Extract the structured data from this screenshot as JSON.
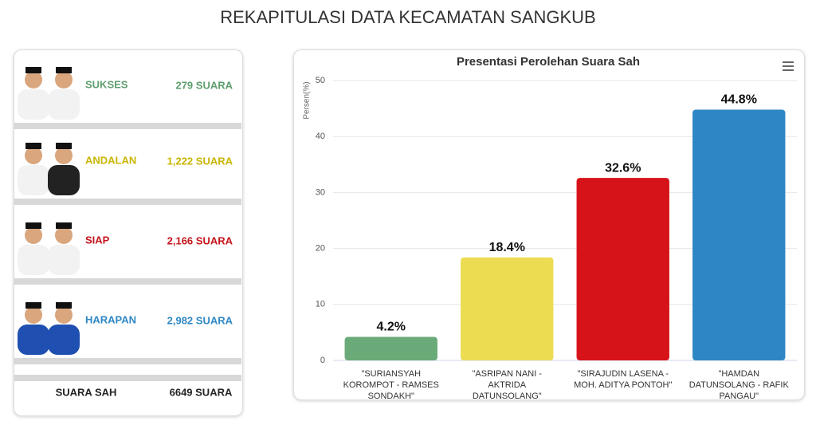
{
  "header": {
    "title": "REKAPITULASI DATA KECAMATAN SANGKUB"
  },
  "candidates": [
    {
      "name": "SUKSES",
      "votes": "279 SUARA",
      "color": "#5e9e6e"
    },
    {
      "name": "ANDALAN",
      "votes": "1,222 SUARA",
      "color": "#c9b500"
    },
    {
      "name": "SIAP",
      "votes": "2,166 SUARA",
      "color": "#c4141b"
    },
    {
      "name": "HARAPAN",
      "votes": "2,982 SUARA",
      "color": "#2e87c4"
    }
  ],
  "total": {
    "label": "SUARA SAH",
    "value": "6649 SUARA"
  },
  "chart_data": {
    "type": "bar",
    "title": "Presentasi Perolehan Suara Sah",
    "y_label": "Persen(%)",
    "categories": [
      "\"SURIANSYAH KOROMPOT - RAMSES SONDAKH\"",
      "\"ASRIPAN NANI - AKTRIDA DATUNSOLANG\"",
      "\"SIRAJUDIN LASENA - MOH. ADITYA PONTOH\"",
      "\"HAMDAN DATUNSOLANG - RAFIK PANGAU\""
    ],
    "values": [
      4.2,
      18.4,
      32.6,
      44.8
    ],
    "value_labels": [
      "4.2%",
      "18.4%",
      "32.6%",
      "44.8%"
    ],
    "colors": [
      "#6aaa78",
      "#ecdc52",
      "#d7131a",
      "#2e87c4"
    ],
    "ylim": [
      0,
      50
    ],
    "yticks": [
      0,
      10,
      20,
      30,
      40,
      50
    ],
    "grid": true
  }
}
